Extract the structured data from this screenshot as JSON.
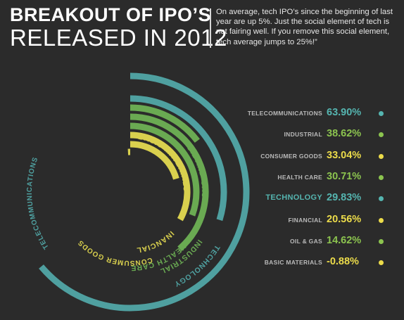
{
  "header": {
    "title_line1": "BREAKOUT OF IPO’S",
    "title_line2": "RELEASED IN 2012",
    "intro": "On average, tech IPO’s since the beginning of last year are up 5%. Just the social element of tech is not fairing well. If you remove this social element, tech average jumps to 25%!”"
  },
  "colors": {
    "background": "#2b2b2b",
    "teal": "#4fa0a0",
    "green": "#6aaa52",
    "yellow": "#d9d04e",
    "label_gray": "#b9b9b9",
    "value_teal": "#55b5b0",
    "value_green": "#8cc44f",
    "value_yellow": "#ecdc4a"
  },
  "chart_data": {
    "type": "radial-bar",
    "categories": [
      "TELECOMMUNICATIONS",
      "TECHNOLOGY",
      "OIL AND GAS",
      "INDUSTRIAL",
      "HEALTH CARE",
      "CONSUMER GOODS",
      "FINANCIALS",
      "BASIC MATERIALS"
    ],
    "values": [
      63.9,
      29.83,
      14.62,
      38.62,
      30.71,
      33.04,
      20.56,
      -0.88
    ],
    "colors": [
      "#4fa0a0",
      "#4fa0a0",
      "#6aaa52",
      "#6aaa52",
      "#6aaa52",
      "#d9d04e",
      "#d9d04e",
      "#d9d04e"
    ],
    "scale_max": 100
  },
  "legend": {
    "items": [
      {
        "label": "TELECOMMUNICATIONS",
        "value": "63.90%",
        "color": "#55b5b0"
      },
      {
        "label": "INDUSTRIAL",
        "value": "38.62%",
        "color": "#8cc44f"
      },
      {
        "label": "CONSUMER GOODS",
        "value": "33.04%",
        "color": "#ecdc4a"
      },
      {
        "label": "HEALTH CARE",
        "value": "30.71%",
        "color": "#8cc44f"
      },
      {
        "label": "TECHNOLOGY",
        "value": "29.83%",
        "color": "#55b5b0",
        "highlight": true
      },
      {
        "label": "FINANCIAL",
        "value": "20.56%",
        "color": "#ecdc4a"
      },
      {
        "label": "OIL & GAS",
        "value": "14.62%",
        "color": "#8cc44f"
      },
      {
        "label": "BASIC MATERIALS",
        "value": "-0.88%",
        "color": "#ecdc4a"
      }
    ]
  }
}
